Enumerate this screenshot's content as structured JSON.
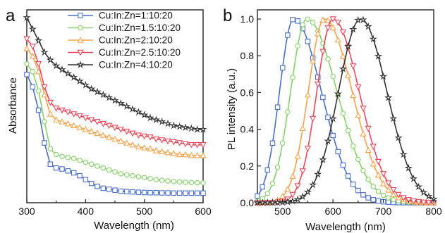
{
  "colors": {
    "blue": "#4a6fc7",
    "green": "#86d16a",
    "orange": "#f5a34a",
    "red": "#e8485a",
    "black": "#333333"
  },
  "chart_data": [
    {
      "panel": "a",
      "type": "line",
      "xlabel": "Wavelength (nm)",
      "ylabel": "Absorbance",
      "xlim": [
        300,
        600
      ],
      "xticks": [
        "300",
        "400",
        "500",
        "600"
      ],
      "yticks_shown": false,
      "grid": false,
      "legend_position": "top-right",
      "series": [
        {
          "name": "Cu:In:Zn=1:10:20",
          "color": "blue",
          "marker": "square",
          "x": [
            300,
            310,
            320,
            330,
            340,
            350,
            360,
            370,
            380,
            390,
            400,
            410,
            420,
            430,
            440,
            450,
            460,
            470,
            480,
            490,
            500,
            510,
            520,
            530,
            540,
            550,
            560,
            570,
            580,
            590,
            600
          ],
          "y": [
            0.665,
            0.6,
            0.48,
            0.31,
            0.2,
            0.18,
            0.175,
            0.165,
            0.155,
            0.14,
            0.12,
            0.1,
            0.085,
            0.075,
            0.07,
            0.065,
            0.06,
            0.058,
            0.056,
            0.054,
            0.053,
            0.052,
            0.052,
            0.051,
            0.051,
            0.05,
            0.05,
            0.05,
            0.05,
            0.05,
            0.05
          ]
        },
        {
          "name": "Cu:In:Zn=1.5:10:20",
          "color": "green",
          "marker": "circle",
          "x": [
            300,
            310,
            320,
            330,
            340,
            350,
            360,
            370,
            380,
            390,
            400,
            410,
            420,
            430,
            440,
            450,
            460,
            470,
            480,
            490,
            500,
            510,
            520,
            530,
            540,
            550,
            560,
            570,
            580,
            590,
            600
          ],
          "y": [
            0.72,
            0.68,
            0.58,
            0.42,
            0.28,
            0.25,
            0.24,
            0.235,
            0.23,
            0.22,
            0.21,
            0.2,
            0.19,
            0.18,
            0.17,
            0.16,
            0.15,
            0.145,
            0.14,
            0.135,
            0.13,
            0.125,
            0.12,
            0.117,
            0.113,
            0.11,
            0.108,
            0.106,
            0.105,
            0.104,
            0.103
          ]
        },
        {
          "name": "Cu:In:Zn=2:10:20",
          "color": "orange",
          "marker": "triangle-up",
          "x": [
            300,
            310,
            320,
            330,
            340,
            350,
            360,
            370,
            380,
            390,
            400,
            410,
            420,
            430,
            440,
            450,
            460,
            470,
            480,
            490,
            500,
            510,
            520,
            530,
            540,
            550,
            560,
            570,
            580,
            590,
            600
          ],
          "y": [
            0.8,
            0.76,
            0.68,
            0.56,
            0.46,
            0.43,
            0.42,
            0.41,
            0.4,
            0.39,
            0.38,
            0.37,
            0.36,
            0.35,
            0.34,
            0.33,
            0.32,
            0.31,
            0.3,
            0.29,
            0.285,
            0.28,
            0.27,
            0.265,
            0.26,
            0.255,
            0.25,
            0.25,
            0.245,
            0.245,
            0.245
          ]
        },
        {
          "name": "Cu:In:Zn=2.5:10:20",
          "color": "red",
          "marker": "triangle-down",
          "x": [
            300,
            310,
            320,
            330,
            340,
            350,
            360,
            370,
            380,
            390,
            400,
            410,
            420,
            430,
            440,
            450,
            460,
            470,
            480,
            490,
            500,
            510,
            520,
            530,
            540,
            550,
            560,
            570,
            580,
            590,
            600
          ],
          "y": [
            0.85,
            0.81,
            0.72,
            0.6,
            0.52,
            0.49,
            0.48,
            0.47,
            0.46,
            0.45,
            0.44,
            0.43,
            0.42,
            0.41,
            0.4,
            0.39,
            0.38,
            0.37,
            0.36,
            0.35,
            0.345,
            0.34,
            0.33,
            0.325,
            0.32,
            0.315,
            0.31,
            0.305,
            0.3,
            0.3,
            0.3
          ]
        },
        {
          "name": "Cu:In:Zn=4:10:20",
          "color": "black",
          "marker": "star",
          "x": [
            300,
            310,
            320,
            330,
            340,
            350,
            360,
            370,
            380,
            390,
            400,
            410,
            420,
            430,
            440,
            450,
            460,
            470,
            480,
            490,
            500,
            510,
            520,
            530,
            540,
            550,
            560,
            570,
            580,
            590,
            600
          ],
          "y": [
            0.96,
            0.9,
            0.84,
            0.78,
            0.74,
            0.71,
            0.69,
            0.67,
            0.65,
            0.63,
            0.61,
            0.59,
            0.575,
            0.56,
            0.545,
            0.53,
            0.515,
            0.5,
            0.485,
            0.47,
            0.455,
            0.44,
            0.43,
            0.42,
            0.41,
            0.4,
            0.395,
            0.39,
            0.385,
            0.38,
            0.38
          ]
        }
      ]
    },
    {
      "panel": "b",
      "type": "line",
      "xlabel": "Wavelength (nm)",
      "ylabel": "PL intensity (a.u.)",
      "xlim": [
        450,
        800
      ],
      "ylim": [
        0.0,
        1.05
      ],
      "xticks": [
        "500",
        "600",
        "700",
        "800"
      ],
      "yticks": [
        "0.0",
        "0.2",
        "0.4",
        "0.6",
        "0.8",
        "1.0"
      ],
      "grid": false,
      "series": [
        {
          "name": "Cu:In:Zn=1:10:20",
          "color": "blue",
          "marker": "square",
          "peak": 522,
          "sigma_left": 28,
          "sigma_right": 55
        },
        {
          "name": "Cu:In:Zn=1.5:10:20",
          "color": "green",
          "marker": "circle",
          "peak": 548,
          "sigma_left": 32,
          "sigma_right": 60
        },
        {
          "name": "Cu:In:Zn=2:10:20",
          "color": "orange",
          "marker": "triangle-up",
          "peak": 583,
          "sigma_left": 32,
          "sigma_right": 55
        },
        {
          "name": "Cu:In:Zn=2.5:10:20",
          "color": "red",
          "marker": "triangle-down",
          "peak": 600,
          "sigma_left": 32,
          "sigma_right": 52
        },
        {
          "name": "Cu:In:Zn=4:10:20",
          "color": "black",
          "marker": "star",
          "peak": 655,
          "sigma_left": 44,
          "sigma_right": 52
        }
      ]
    }
  ]
}
